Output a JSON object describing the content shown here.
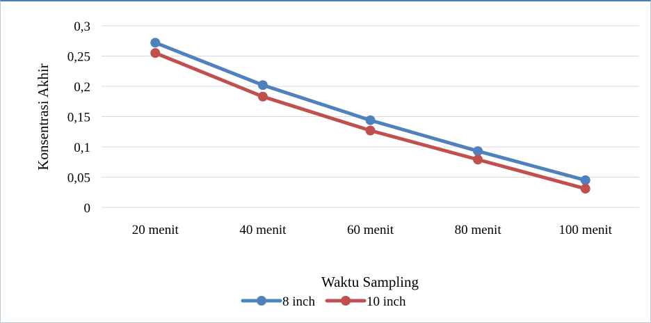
{
  "chart_data": {
    "type": "line",
    "categories": [
      "20 menit",
      "40 menit",
      "60 menit",
      "80 menit",
      "100 menit"
    ],
    "series": [
      {
        "name": "8 inch",
        "values": [
          0.272,
          0.202,
          0.144,
          0.093,
          0.045
        ],
        "color": "#4f81bd"
      },
      {
        "name": "10 inch",
        "values": [
          0.255,
          0.183,
          0.127,
          0.079,
          0.031
        ],
        "color": "#c0504d"
      }
    ],
    "yticks": [
      "0",
      "0,05",
      "0,1",
      "0,15",
      "0,2",
      "0,25",
      "0,3"
    ],
    "ylim": [
      0,
      0.3
    ],
    "xlabel": "Waktu Sampling",
    "ylabel": "Konsentrasi Akhir",
    "grid": true,
    "legend_position": "bottom"
  },
  "colors": {
    "gridline": "#d9d9d9",
    "frame_accent": "#4a7ebb"
  }
}
